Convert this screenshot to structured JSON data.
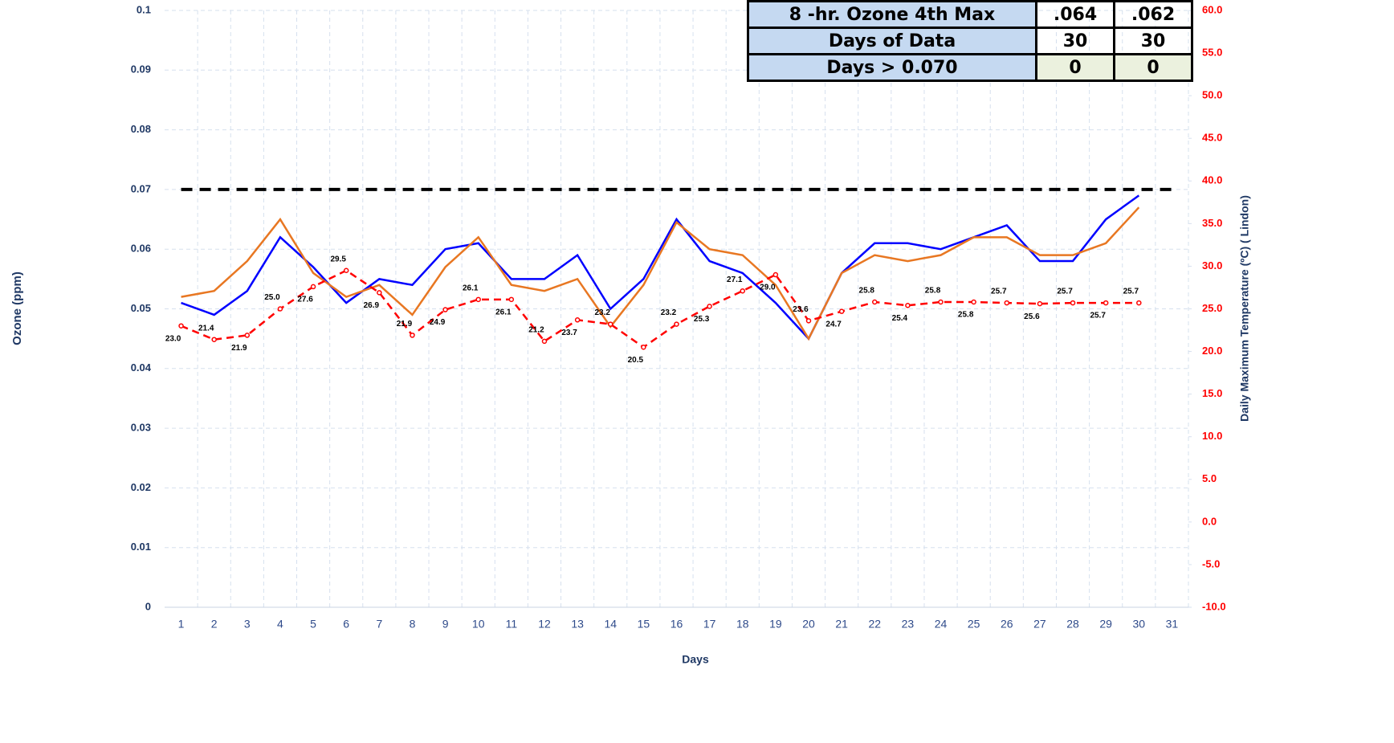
{
  "chart_data": {
    "type": "line",
    "xlabel": "Days",
    "ylabel": "Ozone  (ppm)",
    "y2label": "Daily Maximum Temperature  (ºC)  ( Lindon)",
    "categories": [
      1,
      2,
      3,
      4,
      5,
      6,
      7,
      8,
      9,
      10,
      11,
      12,
      13,
      14,
      15,
      16,
      17,
      18,
      19,
      20,
      21,
      22,
      23,
      24,
      25,
      26,
      27,
      28,
      29,
      30,
      31
    ],
    "ylim": [
      0,
      0.1
    ],
    "yticks": [
      0,
      0.01,
      0.02,
      0.03,
      0.04,
      0.05,
      0.06,
      0.07,
      0.08,
      0.09,
      0.1
    ],
    "y2lim": [
      -10,
      60
    ],
    "y2ticks": [
      {
        "value": -10,
        "label": "-10.0"
      },
      {
        "value": -5,
        "label": "-5.0"
      },
      {
        "value": 0,
        "label": "0.0"
      },
      {
        "value": 5,
        "label": "5.0"
      },
      {
        "value": 10,
        "label": "10.0"
      },
      {
        "value": 15,
        "label": "15.0"
      },
      {
        "value": 20,
        "label": "20.0"
      },
      {
        "value": 25,
        "label": "25.0"
      },
      {
        "value": 30,
        "label": "30.0"
      },
      {
        "value": 35,
        "label": "35.0"
      },
      {
        "value": 40,
        "label": "40.0"
      },
      {
        "value": 45,
        "label": "45.0"
      },
      {
        "value": 50,
        "label": "50.0"
      },
      {
        "value": 55,
        "label": "55.0"
      },
      {
        "value": 60,
        "label": "60.0"
      }
    ],
    "grid": true,
    "threshold": 0.07,
    "series": [
      {
        "color": "#0000ff",
        "values": [
          0.051,
          0.049,
          0.053,
          0.062,
          0.057,
          0.051,
          0.055,
          0.054,
          0.06,
          0.061,
          0.055,
          0.055,
          0.059,
          0.05,
          0.055,
          0.065,
          0.058,
          0.056,
          0.051,
          0.045,
          0.056,
          0.061,
          0.061,
          0.06,
          0.062,
          0.064,
          0.058,
          0.058,
          0.065,
          0.069,
          null
        ]
      },
      {
        "color": "#e87722",
        "values": [
          0.052,
          0.053,
          0.058,
          0.065,
          0.056,
          0.052,
          0.054,
          0.049,
          0.057,
          0.062,
          0.054,
          0.053,
          0.055,
          0.047,
          0.054,
          0.0645,
          0.06,
          0.059,
          0.054,
          0.045,
          0.056,
          0.059,
          0.058,
          0.059,
          0.062,
          0.062,
          0.059,
          0.059,
          0.061,
          0.067,
          null
        ]
      },
      {
        "color": "#ff0000",
        "axis": "y2",
        "dashed": true,
        "values": [
          23.0,
          21.4,
          21.9,
          25.0,
          27.6,
          29.5,
          26.9,
          21.9,
          24.9,
          26.1,
          26.1,
          21.2,
          23.7,
          23.2,
          20.5,
          23.2,
          25.3,
          27.1,
          29.0,
          23.6,
          24.7,
          25.8,
          25.4,
          25.8,
          25.8,
          25.7,
          25.6,
          25.7,
          25.7,
          25.7,
          null
        ],
        "value_labels": [
          "23.0",
          "21.4",
          "21.9",
          "25.0",
          "27.6",
          "29.5",
          "26.9",
          "21.9",
          "24.9",
          "26.1",
          "26.1",
          "21.2",
          "23.7",
          "23.2",
          "20.5",
          "23.2",
          "25.3",
          "27.1",
          "29.0",
          "23.6",
          "24.7",
          "25.8",
          "25.4",
          "25.8",
          "25.8",
          "25.7",
          "25.6",
          "25.7",
          "25.7",
          "25.7",
          null
        ]
      }
    ]
  },
  "table": {
    "rows": [
      [
        "8 -hr. Ozone 4th Max",
        ".064",
        ".062"
      ],
      [
        "Days of Data",
        "30",
        "30"
      ],
      [
        "Days > 0.070",
        "0",
        "0"
      ]
    ]
  }
}
